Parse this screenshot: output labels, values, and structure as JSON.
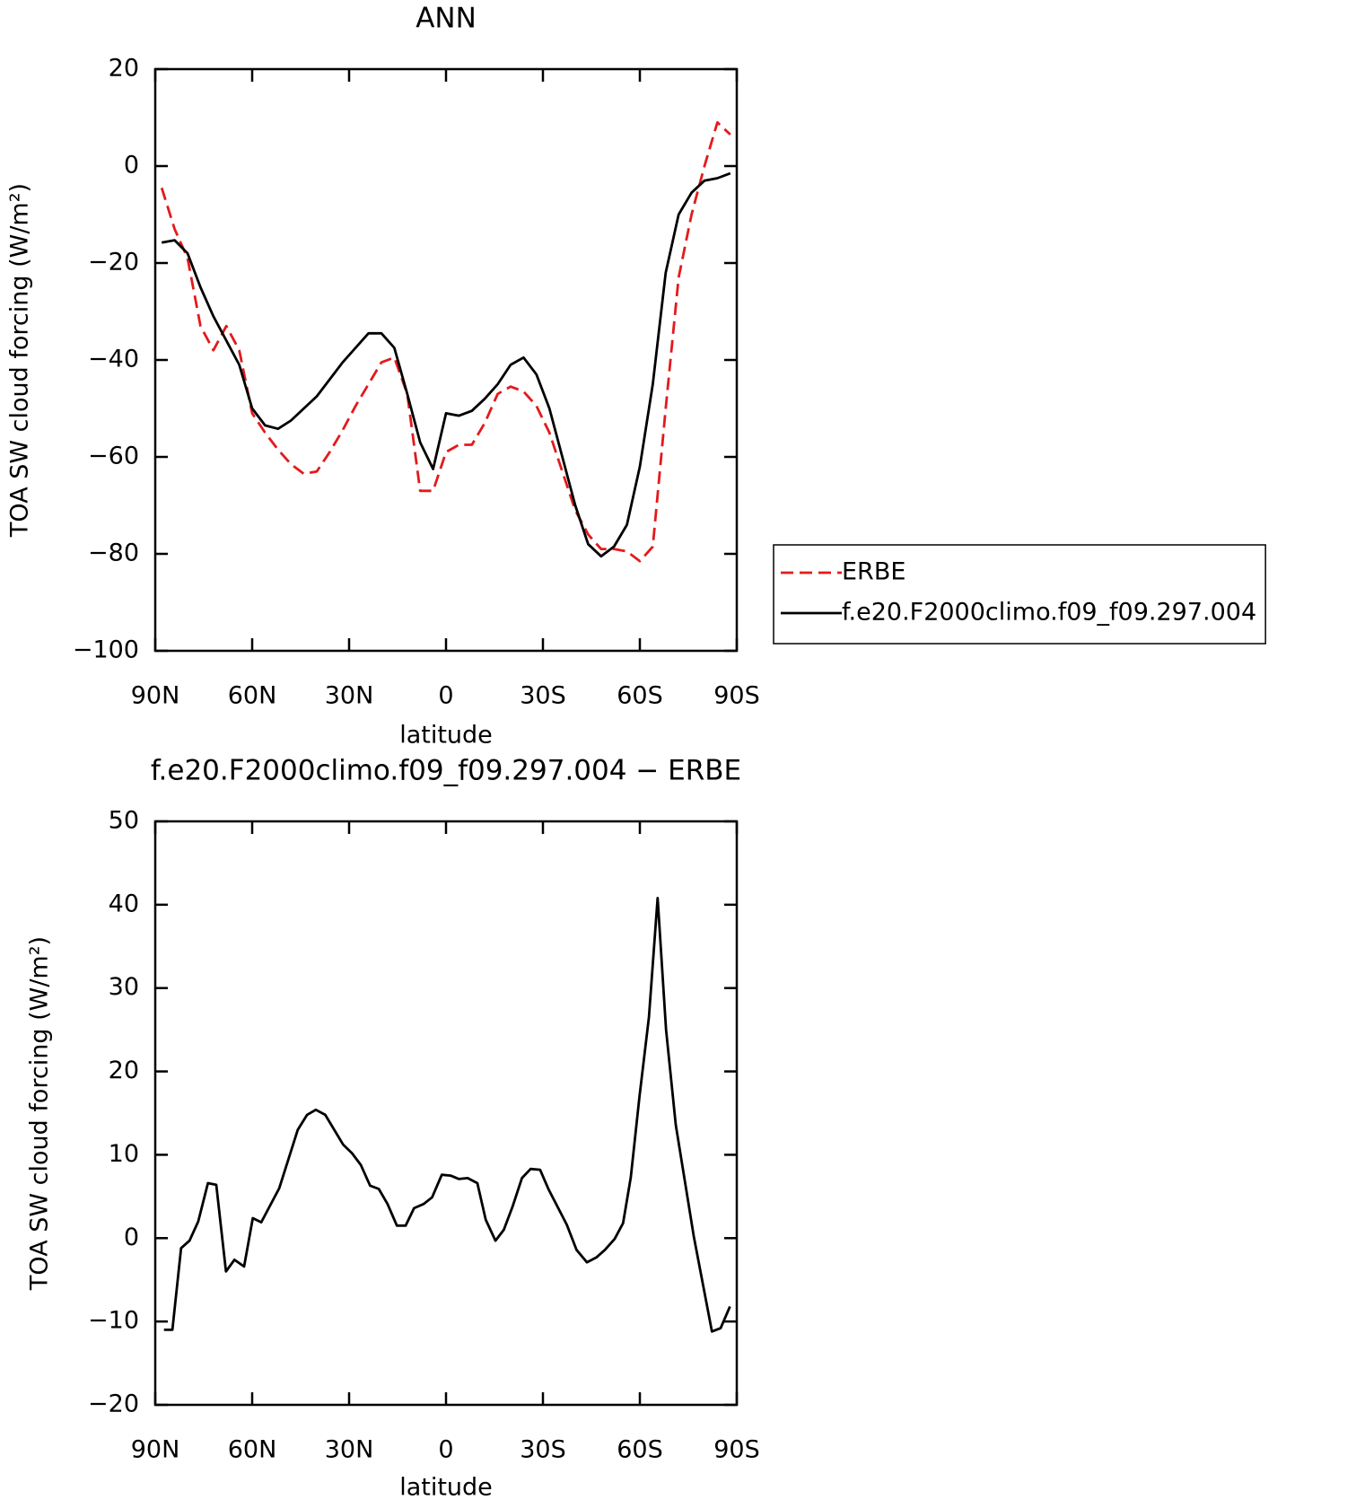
{
  "chart_data": [
    {
      "type": "line",
      "title": "ANN",
      "x_label": "latitude",
      "y_label": "TOA SW cloud forcing (W/m²)",
      "x": [
        88,
        84,
        80,
        76,
        72,
        68,
        64,
        60,
        56,
        52,
        48,
        44,
        40,
        36,
        32,
        28,
        24,
        20,
        16,
        12,
        8,
        4,
        0,
        -4,
        -8,
        -12,
        -16,
        -20,
        -24,
        -28,
        -32,
        -36,
        -40,
        -44,
        -48,
        -52,
        -56,
        -60,
        -64,
        -68,
        -72,
        -76,
        -80,
        -84,
        -88
      ],
      "xlim": [
        90,
        -90
      ],
      "xticks": [
        {
          "value": 90,
          "label": "90N"
        },
        {
          "value": 60,
          "label": "60N"
        },
        {
          "value": 30,
          "label": "30N"
        },
        0,
        {
          "value": -30,
          "label": "30S"
        },
        {
          "value": -60,
          "label": "60S"
        },
        {
          "value": -90,
          "label": "90S"
        }
      ],
      "ylim": [
        -100,
        20
      ],
      "yticks": [
        {
          "value": -100,
          "label": "−100"
        },
        {
          "value": -80,
          "label": "−80"
        },
        {
          "value": -60,
          "label": "−60"
        },
        {
          "value": -40,
          "label": "−40"
        },
        {
          "value": -20,
          "label": "−20"
        },
        0,
        20
      ],
      "legend": "right",
      "series": [
        {
          "name": "ERBE",
          "color": "#e31a1c",
          "line_style": "dashed",
          "values": [
            -4.5,
            -13,
            -19,
            -33,
            -38,
            -33,
            -38,
            -51,
            -55,
            -58.5,
            -61.5,
            -63.5,
            -63,
            -59,
            -54.5,
            -49.5,
            -45,
            -40.5,
            -39.5,
            -47,
            -67,
            -67,
            -59,
            -57.5,
            -57.5,
            -53,
            -47,
            -45.5,
            -46.5,
            -49.5,
            -55,
            -63,
            -71,
            -76,
            -79,
            -79,
            -79.5,
            -81.5,
            -78.5,
            -50,
            -23,
            -10,
            0,
            9,
            6.5
          ]
        },
        {
          "name": "f.e20.F2000climo.f09_f09.297.004",
          "color": "#000000",
          "line_style": "solid",
          "values": [
            -15.8,
            -15.3,
            -18,
            -25,
            -31,
            -36,
            -41,
            -50,
            -53.5,
            -54.2,
            -52.5,
            -50,
            -47.5,
            -44,
            -40.5,
            -37.5,
            -34.5,
            -34.5,
            -37.5,
            -47,
            -57,
            -62.5,
            -51,
            -51.5,
            -50.5,
            -48,
            -45,
            -41,
            -39.5,
            -43,
            -50,
            -60,
            -70,
            -78,
            -80.5,
            -78.5,
            -74,
            -62,
            -45,
            -22,
            -10,
            -5.5,
            -3,
            -2.5,
            -1.5
          ]
        }
      ]
    },
    {
      "type": "line",
      "title": "f.e20.F2000climo.f09_f09.297.004 − ERBE",
      "x_label": "latitude",
      "y_label": "TOA SW cloud forcing (W/m²)",
      "x": [
        87.3,
        84.7,
        82.0,
        79.4,
        76.7,
        73.7,
        71.1,
        68.1,
        65.5,
        62.5,
        59.8,
        57.2,
        51.6,
        45.9,
        43.0,
        40.3,
        37.4,
        31.8,
        29.1,
        26.4,
        23.5,
        20.8,
        18.1,
        15.2,
        12.5,
        9.9,
        6.9,
        4.3,
        1.3,
        -1.4,
        -4.0,
        -6.7,
        -9.7,
        -12.3,
        -15.3,
        -17.9,
        -20.6,
        -23.5,
        -26.2,
        -29.1,
        -31.8,
        -37.4,
        -40.4,
        -43.6,
        -46.6,
        -49.2,
        -52.2,
        -54.8,
        -57.2,
        -59.9,
        -62.8,
        -65.5,
        -68.1,
        -71.1,
        -76.7,
        -82.3,
        -85.0,
        -87.9
      ],
      "xlim": [
        90,
        -90
      ],
      "xticks": [
        {
          "value": 90,
          "label": "90N"
        },
        {
          "value": 60,
          "label": "60N"
        },
        {
          "value": 30,
          "label": "30N"
        },
        0,
        {
          "value": -30,
          "label": "30S"
        },
        {
          "value": -60,
          "label": "60S"
        },
        {
          "value": -90,
          "label": "90S"
        }
      ],
      "ylim": [
        -20,
        50
      ],
      "yticks": [
        {
          "value": -20,
          "label": "−20"
        },
        {
          "value": -10,
          "label": "−10"
        },
        0,
        10,
        20,
        30,
        40,
        50
      ],
      "series": [
        {
          "color": "#000000",
          "line_style": "solid",
          "values": [
            -11,
            -11,
            -1.2,
            -0.3,
            2,
            6.6,
            6.4,
            -4,
            -2.6,
            -3.4,
            2.4,
            1.9,
            6,
            13,
            14.8,
            15.4,
            14.8,
            11.2,
            10.2,
            8.8,
            6.3,
            5.9,
            4.1,
            1.5,
            1.5,
            3.6,
            4.1,
            4.9,
            7.6,
            7.5,
            7.1,
            7.2,
            6.6,
            2.2,
            -0.3,
            1,
            3.8,
            7.2,
            8.3,
            8.2,
            5.8,
            1.6,
            -1.4,
            -2.9,
            -2.3,
            -1.4,
            -0.1,
            1.8,
            7.3,
            17,
            26.5,
            40.8,
            25,
            13.6,
            0.2,
            -11.2,
            -10.8,
            -8.2
          ]
        }
      ]
    }
  ]
}
